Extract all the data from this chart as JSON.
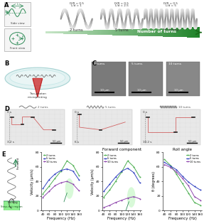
{
  "bg_color": "#ffffff",
  "panel_E": {
    "freq": [
      40,
      60,
      80,
      100,
      120,
      140,
      160
    ],
    "velocity_2turns": [
      23,
      33,
      44,
      54,
      68,
      62,
      48
    ],
    "velocity_5turns": [
      30,
      42,
      50,
      55,
      57,
      54,
      42
    ],
    "velocity_10turns": [
      18,
      26,
      34,
      38,
      40,
      36,
      27
    ],
    "fwd_2turns": [
      18,
      28,
      40,
      53,
      68,
      60,
      46
    ],
    "fwd_5turns": [
      26,
      36,
      46,
      54,
      58,
      52,
      38
    ],
    "fwd_10turns": [
      4,
      7,
      11,
      14,
      17,
      19,
      16
    ],
    "roll_2turns": [
      70,
      62,
      50,
      37,
      24,
      11,
      7
    ],
    "roll_5turns": [
      66,
      61,
      56,
      47,
      39,
      33,
      28
    ],
    "roll_10turns": [
      63,
      59,
      53,
      44,
      34,
      19,
      14
    ],
    "color_2turns": "#4caf50",
    "color_5turns": "#3040c0",
    "color_10turns": "#8e44ad",
    "plot2_title": "Forward component",
    "plot3_title": "Roll angle",
    "ylabel1": "Velocity (μm/s)",
    "ylabel2": "Velocity (μm/s)",
    "ylabel3": "θ (degrees)",
    "xlabel": "Frequency (Hz)",
    "yticks_vel": [
      0,
      20,
      40,
      60,
      80
    ],
    "yticks_roll": [
      0,
      20,
      40,
      60,
      80
    ],
    "xticks": [
      40,
      60,
      80,
      100,
      120,
      140,
      160
    ]
  }
}
